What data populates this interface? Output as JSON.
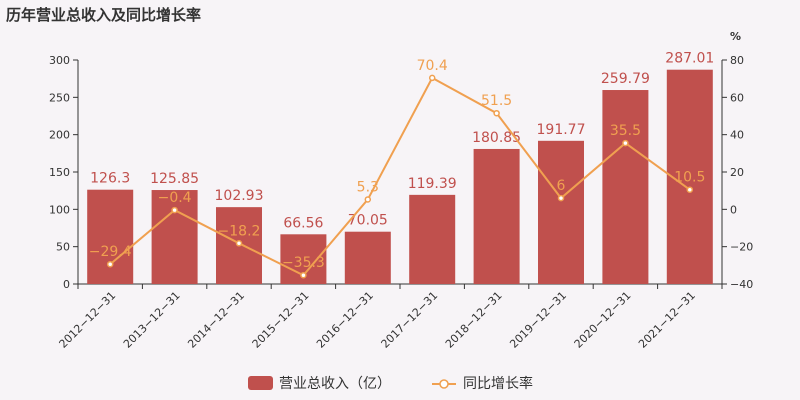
{
  "chart_data": {
    "type": "bar+line",
    "title": "历年营业总收入及同比增长率",
    "categories": [
      "2012-12-31",
      "2013-12-31",
      "2014-12-31",
      "2015-12-31",
      "2016-12-31",
      "2017-12-31",
      "2018-12-31",
      "2019-12-31",
      "2020-12-31",
      "2021-12-31"
    ],
    "series": [
      {
        "name": "营业总收入（亿）",
        "type": "bar",
        "axis": "left",
        "color": "#c0504d",
        "values": [
          126.3,
          125.85,
          102.93,
          66.56,
          70.05,
          119.39,
          180.85,
          191.77,
          259.79,
          287.01
        ],
        "labels": [
          "126.3",
          "125.85",
          "102.93",
          "66.56",
          "70.05",
          "119.39",
          "180.85",
          "191.77",
          "259.79",
          "287.01"
        ]
      },
      {
        "name": "同比增长率",
        "type": "line",
        "axis": "right",
        "color": "#f0a050",
        "values": [
          -29.4,
          -0.4,
          -18.2,
          -35.3,
          5.3,
          70.4,
          51.5,
          6,
          35.5,
          10.5
        ],
        "labels": [
          "-29.4",
          "-0.4",
          "-18.2",
          "-35.3",
          "5.3",
          "70.4",
          "51.5",
          "6",
          "35.5",
          "10.5"
        ]
      }
    ],
    "y_left": {
      "min": 0,
      "max": 300,
      "ticks": [
        "0",
        "50",
        "100",
        "150",
        "200",
        "250",
        "300"
      ]
    },
    "y_right": {
      "min": -40,
      "max": 80,
      "ticks": [
        "-40",
        "-20",
        "0",
        "20",
        "40",
        "60",
        "80"
      ],
      "unit": "%"
    },
    "legend_position": "bottom-center",
    "grid": false
  }
}
